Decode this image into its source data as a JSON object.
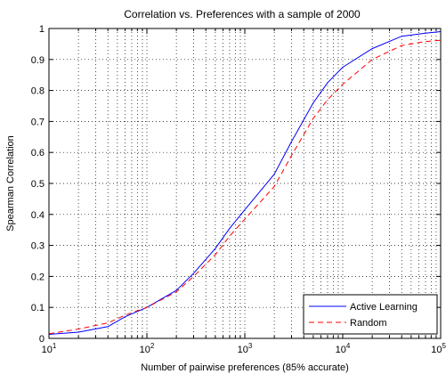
{
  "chart_data": {
    "type": "line",
    "title": "Correlation vs. Preferences with a sample of 2000",
    "xlabel": "Number of pairwise preferences (85% accurate)",
    "ylabel": "Spearman Correlation",
    "xscale": "log",
    "xlim": [
      10,
      100000
    ],
    "ylim": [
      0,
      1
    ],
    "grid": true,
    "legend_position": "bottom-right",
    "x_ticks": [
      {
        "value": 10,
        "base": "10",
        "exp": "1"
      },
      {
        "value": 100,
        "base": "10",
        "exp": "2"
      },
      {
        "value": 1000,
        "base": "10",
        "exp": "3"
      },
      {
        "value": 10000,
        "base": "10",
        "exp": "4"
      },
      {
        "value": 100000,
        "base": "10",
        "exp": "5"
      }
    ],
    "y_ticks": [
      {
        "value": 0,
        "label": "0"
      },
      {
        "value": 0.1,
        "label": "0.1"
      },
      {
        "value": 0.2,
        "label": "0.2"
      },
      {
        "value": 0.3,
        "label": "0.3"
      },
      {
        "value": 0.4,
        "label": "0.4"
      },
      {
        "value": 0.5,
        "label": "0.5"
      },
      {
        "value": 0.6,
        "label": "0.6"
      },
      {
        "value": 0.7,
        "label": "0.7"
      },
      {
        "value": 0.8,
        "label": "0.8"
      },
      {
        "value": 0.9,
        "label": "0.9"
      },
      {
        "value": 1,
        "label": "1"
      }
    ],
    "series": [
      {
        "name": "Active Learning",
        "color": "#0000ff",
        "style": "solid",
        "x": [
          10,
          20,
          40,
          60,
          100,
          200,
          300,
          500,
          700,
          1000,
          2000,
          3000,
          5000,
          7000,
          10000,
          20000,
          40000,
          70000,
          100000
        ],
        "y": [
          0.013,
          0.02,
          0.038,
          0.07,
          0.1,
          0.155,
          0.21,
          0.29,
          0.355,
          0.415,
          0.53,
          0.635,
          0.76,
          0.825,
          0.875,
          0.935,
          0.975,
          0.985,
          0.99
        ]
      },
      {
        "name": "Random",
        "color": "#ff0000",
        "style": "dashed",
        "x": [
          10,
          20,
          40,
          60,
          100,
          200,
          300,
          500,
          700,
          1000,
          2000,
          3000,
          5000,
          7000,
          10000,
          20000,
          40000,
          70000,
          100000
        ],
        "y": [
          0.015,
          0.03,
          0.05,
          0.075,
          0.1,
          0.15,
          0.2,
          0.27,
          0.33,
          0.385,
          0.49,
          0.59,
          0.71,
          0.77,
          0.82,
          0.9,
          0.945,
          0.958,
          0.962
        ]
      }
    ]
  }
}
